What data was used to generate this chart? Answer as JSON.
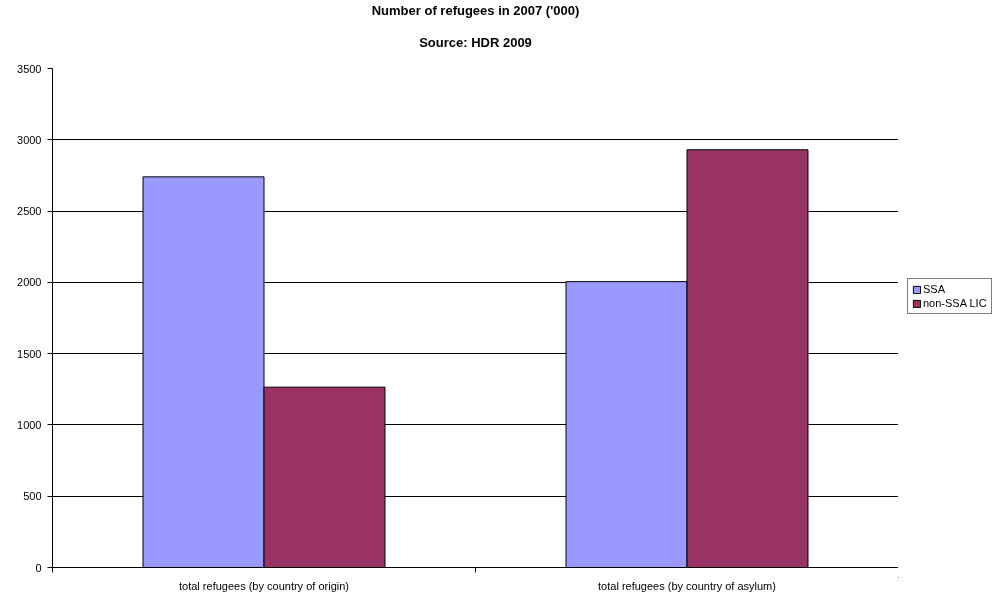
{
  "chart_data": {
    "type": "bar",
    "title": "Number of refugees in 2007 ('000)",
    "subtitle": "Source: HDR 2009",
    "categories": [
      "total refugees (by country of origin)",
      "total refugees (by country of asylum)"
    ],
    "series": [
      {
        "name": "SSA",
        "color": "#9999ff",
        "values": [
          2740,
          2005
        ]
      },
      {
        "name": "non-SSA LIC",
        "color": "#993366",
        "values": [
          1265,
          2930
        ]
      }
    ],
    "ylim": [
      0,
      3500
    ],
    "yticks": [
      0,
      500,
      1000,
      1500,
      2000,
      2500,
      3000,
      3500
    ],
    "grid": "y",
    "legend": "right"
  }
}
